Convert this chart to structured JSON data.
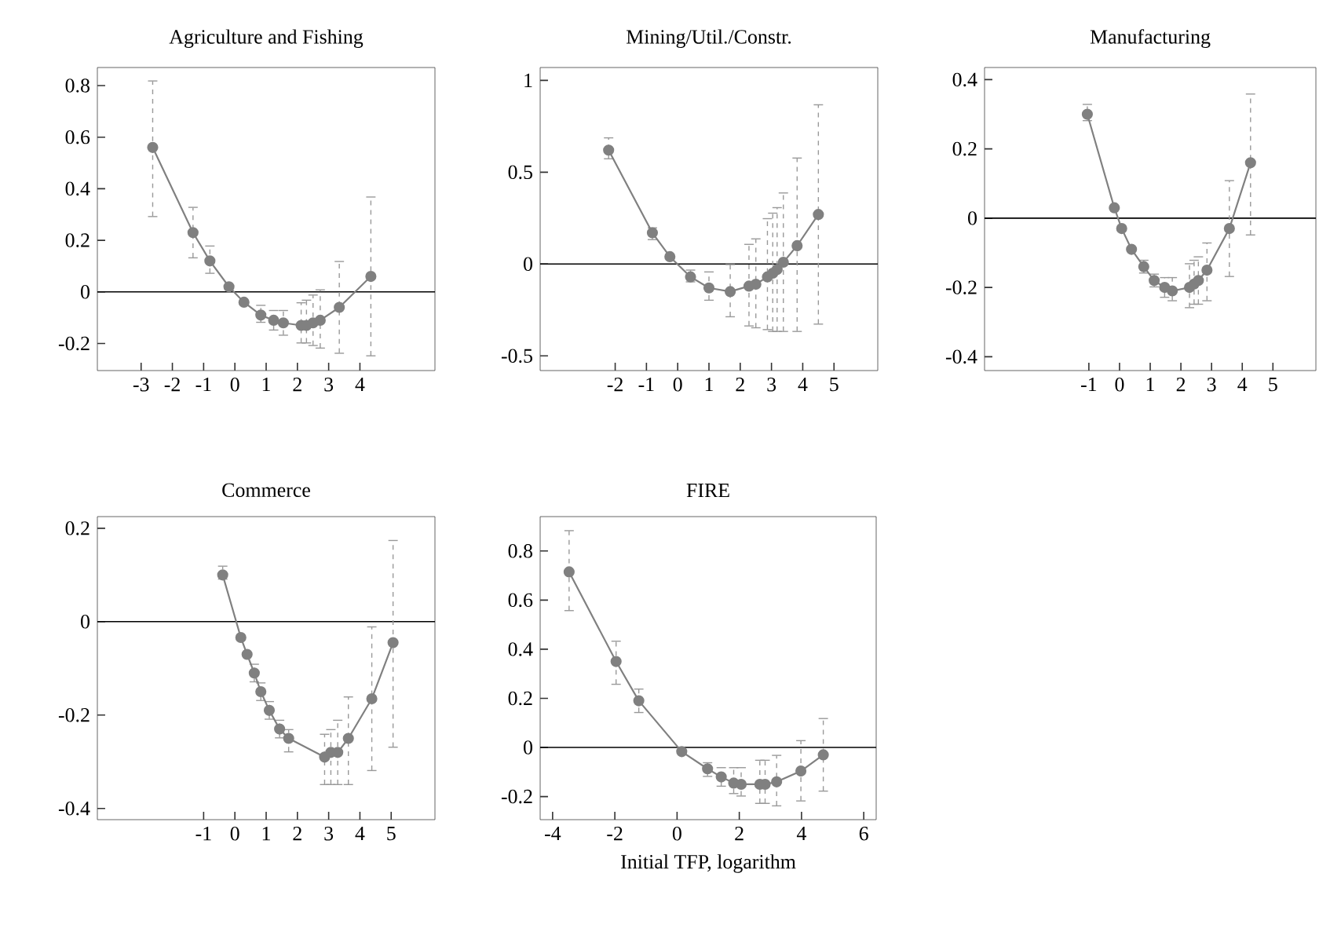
{
  "chart_data": [
    {
      "type": "line",
      "title": "Agriculture and Fishing",
      "xlim": [
        -4.4,
        6.4
      ],
      "ylim": [
        -0.305,
        0.87
      ],
      "xticks": [
        -3,
        -2,
        -1,
        0,
        1,
        2,
        3,
        4
      ],
      "yticks": [
        -0.2,
        0,
        0.2,
        0.4,
        0.6,
        0.8
      ],
      "grid": false,
      "marker": "circle",
      "line_style": "solid",
      "ref_lines": [
        {
          "axis": "y",
          "value": 0,
          "color": "#000000"
        }
      ],
      "series": [
        {
          "color": "#808080",
          "x": [
            -2.63,
            -1.34,
            -0.8,
            -0.19,
            0.29,
            0.83,
            1.24,
            1.55,
            2.12,
            2.29,
            2.5,
            2.73,
            3.34,
            4.35
          ],
          "values": [
            0.56,
            0.23,
            0.12,
            0.02,
            -0.04,
            -0.09,
            -0.11,
            -0.12,
            -0.13,
            -0.13,
            -0.12,
            -0.11,
            -0.06,
            0.06
          ],
          "errors": [
            [
              0.29,
              0.82
            ],
            [
              0.13,
              0.33
            ],
            [
              0.07,
              0.18
            ],
            null,
            null,
            [
              -0.12,
              -0.05
            ],
            [
              -0.15,
              -0.07
            ],
            [
              -0.17,
              -0.07
            ],
            [
              -0.2,
              -0.04
            ],
            [
              -0.2,
              -0.03
            ],
            [
              -0.21,
              -0.01
            ],
            [
              -0.22,
              0.01
            ],
            [
              -0.24,
              0.12
            ],
            [
              -0.25,
              0.37
            ]
          ]
        }
      ]
    },
    {
      "type": "line",
      "title": "Mining/Util./Constr.",
      "xlim": [
        -4.4,
        6.4
      ],
      "ylim": [
        -0.58,
        1.07
      ],
      "xticks": [
        -2,
        -1,
        0,
        1,
        2,
        3,
        4,
        5
      ],
      "yticks": [
        -0.5,
        0,
        0.5,
        1
      ],
      "grid": false,
      "marker": "circle",
      "line_style": "solid",
      "ref_lines": [
        {
          "axis": "y",
          "value": 0,
          "color": "#000000"
        }
      ],
      "series": [
        {
          "color": "#808080",
          "x": [
            -2.21,
            -0.81,
            -0.25,
            0.41,
            1.0,
            1.68,
            2.28,
            2.5,
            2.87,
            3.04,
            3.18,
            3.38,
            3.82,
            4.5
          ],
          "values": [
            0.62,
            0.17,
            0.04,
            -0.07,
            -0.13,
            -0.15,
            -0.12,
            -0.11,
            -0.07,
            -0.05,
            -0.03,
            0.01,
            0.1,
            0.27
          ],
          "errors": [
            [
              0.57,
              0.69
            ],
            [
              0.13,
              0.2
            ],
            null,
            [
              -0.1,
              -0.03
            ],
            [
              -0.2,
              -0.04
            ],
            [
              -0.29,
              0.0
            ],
            [
              -0.34,
              0.11
            ],
            [
              -0.35,
              0.14
            ],
            [
              -0.36,
              0.25
            ],
            [
              -0.37,
              0.28
            ],
            [
              -0.37,
              0.31
            ],
            [
              -0.37,
              0.39
            ],
            [
              -0.37,
              0.58
            ],
            [
              -0.33,
              0.87
            ]
          ]
        }
      ]
    },
    {
      "type": "line",
      "title": "Manufacturing",
      "xlim": [
        -4.4,
        6.4
      ],
      "ylim": [
        -0.44,
        0.435
      ],
      "xticks": [
        -1,
        0,
        1,
        2,
        3,
        4,
        5
      ],
      "yticks": [
        -0.4,
        -0.2,
        0,
        0.2,
        0.4
      ],
      "grid": false,
      "marker": "circle",
      "line_style": "solid",
      "ref_lines": [
        {
          "axis": "y",
          "value": 0,
          "color": "#000000"
        }
      ],
      "series": [
        {
          "color": "#808080",
          "x": [
            -1.05,
            -0.17,
            0.07,
            0.39,
            0.79,
            1.13,
            1.47,
            1.72,
            2.28,
            2.43,
            2.57,
            2.85,
            3.58,
            4.27
          ],
          "values": [
            0.3,
            0.03,
            -0.03,
            -0.09,
            -0.14,
            -0.18,
            -0.2,
            -0.21,
            -0.2,
            -0.19,
            -0.18,
            -0.15,
            -0.03,
            0.16
          ],
          "errors": [
            [
              0.28,
              0.33
            ],
            null,
            null,
            null,
            [
              -0.16,
              -0.12
            ],
            [
              -0.2,
              -0.16
            ],
            [
              -0.23,
              -0.17
            ],
            [
              -0.24,
              -0.17
            ],
            [
              -0.26,
              -0.13
            ],
            [
              -0.25,
              -0.12
            ],
            [
              -0.25,
              -0.11
            ],
            [
              -0.24,
              -0.07
            ],
            [
              -0.17,
              0.11
            ],
            [
              -0.05,
              0.36
            ]
          ]
        }
      ]
    },
    {
      "type": "line",
      "title": "Commerce",
      "xlim": [
        -4.4,
        6.4
      ],
      "ylim": [
        -0.424,
        0.225
      ],
      "xticks": [
        -1,
        0,
        1,
        2,
        3,
        4,
        5
      ],
      "yticks": [
        -0.4,
        -0.2,
        0,
        0.2
      ],
      "grid": false,
      "marker": "circle",
      "line_style": "solid",
      "ref_lines": [
        {
          "axis": "y",
          "value": 0,
          "color": "#000000"
        }
      ],
      "series": [
        {
          "color": "#808080",
          "x": [
            -0.39,
            0.19,
            0.39,
            0.62,
            0.83,
            1.1,
            1.43,
            1.72,
            2.87,
            3.07,
            3.29,
            3.63,
            4.38,
            5.06
          ],
          "values": [
            0.1,
            -0.034,
            -0.07,
            -0.11,
            -0.15,
            -0.19,
            -0.23,
            -0.25,
            -0.29,
            -0.28,
            -0.28,
            -0.25,
            -0.165,
            -0.045
          ],
          "errors": [
            [
              0.09,
              0.12
            ],
            null,
            null,
            [
              -0.13,
              -0.09
            ],
            [
              -0.17,
              -0.13
            ],
            [
              -0.21,
              -0.17
            ],
            [
              -0.25,
              -0.21
            ],
            [
              -0.28,
              -0.23
            ],
            [
              -0.35,
              -0.24
            ],
            [
              -0.35,
              -0.23
            ],
            [
              -0.35,
              -0.21
            ],
            [
              -0.35,
              -0.16
            ],
            [
              -0.32,
              -0.01
            ],
            [
              -0.27,
              0.175
            ]
          ]
        }
      ]
    },
    {
      "type": "line",
      "title": "FIRE",
      "xlabel": "Initial TFP, logarithm",
      "xlim": [
        -4.4,
        6.4
      ],
      "ylim": [
        -0.294,
        0.94
      ],
      "xticks": [
        -4,
        -2,
        0,
        2,
        4,
        6
      ],
      "yticks": [
        -0.2,
        0,
        0.2,
        0.4,
        0.6,
        0.8
      ],
      "grid": false,
      "marker": "circle",
      "line_style": "solid",
      "ref_lines": [
        {
          "axis": "y",
          "value": 0,
          "color": "#000000"
        }
      ],
      "series": [
        {
          "color": "#808080",
          "x": [
            -3.47,
            -1.96,
            -1.23,
            0.15,
            0.98,
            1.42,
            1.82,
            2.06,
            2.66,
            2.83,
            3.2,
            3.98,
            4.7
          ],
          "values": [
            0.715,
            0.35,
            0.19,
            -0.017,
            -0.087,
            -0.12,
            -0.145,
            -0.15,
            -0.15,
            -0.15,
            -0.14,
            -0.096,
            -0.03
          ],
          "errors": [
            [
              0.555,
              0.885
            ],
            [
              0.255,
              0.435
            ],
            [
              0.14,
              0.24
            ],
            null,
            [
              -0.12,
              -0.06
            ],
            [
              -0.16,
              -0.08
            ],
            [
              -0.19,
              -0.08
            ],
            [
              -0.2,
              -0.08
            ],
            [
              -0.23,
              -0.05
            ],
            [
              -0.23,
              -0.05
            ],
            [
              -0.24,
              -0.03
            ],
            [
              -0.22,
              0.03
            ],
            [
              -0.18,
              0.12
            ]
          ]
        }
      ]
    }
  ]
}
